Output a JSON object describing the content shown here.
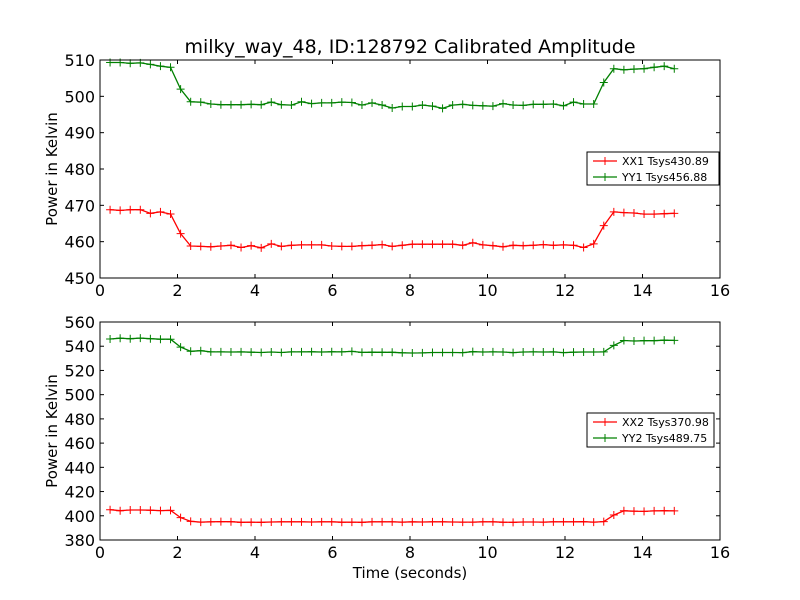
{
  "chart_data": [
    {
      "type": "line",
      "title": "milky_way_48, ID:128792 Calibrated Amplitude",
      "xlabel": "",
      "ylabel": "Power in Kelvin",
      "xlim": [
        0,
        16
      ],
      "ylim": [
        450,
        510
      ],
      "xticks": [
        "0",
        "2",
        "4",
        "6",
        "8",
        "10",
        "12",
        "14",
        "16"
      ],
      "yticks": [
        "450",
        "460",
        "470",
        "480",
        "490",
        "500",
        "510"
      ],
      "grid": false,
      "legend_position": "center-right",
      "x": [
        0.26,
        0.52,
        0.78,
        1.04,
        1.3,
        1.56,
        1.82,
        2.08,
        2.34,
        2.6,
        2.86,
        3.12,
        3.38,
        3.64,
        3.9,
        4.16,
        4.42,
        4.68,
        4.94,
        5.2,
        5.46,
        5.72,
        5.98,
        6.24,
        6.5,
        6.76,
        7.02,
        7.28,
        7.54,
        7.8,
        8.06,
        8.32,
        8.58,
        8.84,
        9.1,
        9.36,
        9.62,
        9.88,
        10.14,
        10.4,
        10.66,
        10.92,
        11.18,
        11.44,
        11.7,
        11.96,
        12.22,
        12.48,
        12.74,
        13.0,
        13.26,
        13.52,
        13.78,
        14.04,
        14.3,
        14.56,
        14.82
      ],
      "series": [
        {
          "name": "XX1 Tsys430.89",
          "color": "#ff0000",
          "values": [
            468.8,
            468.6,
            468.8,
            468.8,
            467.8,
            468.2,
            467.6,
            462.2,
            458.8,
            458.7,
            458.6,
            458.8,
            459.0,
            458.4,
            458.9,
            458.3,
            459.4,
            458.7,
            459.0,
            459.1,
            459.1,
            459.1,
            458.8,
            458.7,
            458.7,
            458.9,
            459.0,
            459.2,
            458.7,
            459.0,
            459.3,
            459.3,
            459.3,
            459.3,
            459.3,
            459.0,
            459.7,
            459.1,
            458.9,
            458.6,
            459.0,
            458.9,
            459.0,
            459.2,
            459.0,
            459.1,
            459.0,
            458.4,
            459.4,
            464.4,
            468.2,
            468.0,
            467.9,
            467.6,
            467.6,
            467.7,
            467.8
          ]
        },
        {
          "name": "YY1 Tsys456.88",
          "color": "#008000",
          "values": [
            509.3,
            509.3,
            509.1,
            509.2,
            508.8,
            508.3,
            508.0,
            502.0,
            498.5,
            498.4,
            497.9,
            497.7,
            497.7,
            497.7,
            497.8,
            497.7,
            498.4,
            497.7,
            497.6,
            498.5,
            498.0,
            498.2,
            498.2,
            498.4,
            498.3,
            497.6,
            498.2,
            497.6,
            496.8,
            497.2,
            497.2,
            497.6,
            497.3,
            496.7,
            497.6,
            497.8,
            497.5,
            497.4,
            497.3,
            498.0,
            497.6,
            497.5,
            497.8,
            497.8,
            497.9,
            497.4,
            498.4,
            497.9,
            497.9,
            503.8,
            507.6,
            507.3,
            507.5,
            507.6,
            508.0,
            508.3,
            507.6
          ]
        }
      ]
    },
    {
      "type": "line",
      "title": "",
      "xlabel": "Time (seconds)",
      "ylabel": "Power in Kelvin",
      "xlim": [
        0,
        16
      ],
      "ylim": [
        380,
        560
      ],
      "xticks": [
        "0",
        "2",
        "4",
        "6",
        "8",
        "10",
        "12",
        "14",
        "16"
      ],
      "yticks": [
        "380",
        "400",
        "420",
        "440",
        "460",
        "480",
        "500",
        "520",
        "540",
        "560"
      ],
      "grid": false,
      "legend_position": "center-right",
      "x": [
        0.26,
        0.52,
        0.78,
        1.04,
        1.3,
        1.56,
        1.82,
        2.08,
        2.34,
        2.6,
        2.86,
        3.12,
        3.38,
        3.64,
        3.9,
        4.16,
        4.42,
        4.68,
        4.94,
        5.2,
        5.46,
        5.72,
        5.98,
        6.24,
        6.5,
        6.76,
        7.02,
        7.28,
        7.54,
        7.8,
        8.06,
        8.32,
        8.58,
        8.84,
        9.1,
        9.36,
        9.62,
        9.88,
        10.14,
        10.4,
        10.66,
        10.92,
        11.18,
        11.44,
        11.7,
        11.96,
        12.22,
        12.48,
        12.74,
        13.0,
        13.26,
        13.52,
        13.78,
        14.04,
        14.3,
        14.56,
        14.82
      ],
      "series": [
        {
          "name": "XX2 Tsys370.98",
          "color": "#ff0000",
          "values": [
            405.0,
            404.2,
            404.8,
            404.8,
            404.6,
            404.3,
            404.5,
            398.5,
            395.4,
            394.8,
            395.0,
            395.2,
            395.1,
            394.6,
            394.7,
            394.6,
            394.9,
            395.0,
            395.0,
            395.0,
            394.9,
            395.0,
            395.0,
            394.7,
            394.8,
            394.6,
            395.0,
            395.0,
            395.0,
            394.8,
            395.0,
            394.9,
            395.0,
            395.0,
            394.9,
            394.8,
            394.8,
            395.0,
            395.0,
            394.7,
            394.6,
            394.9,
            394.9,
            394.8,
            395.0,
            395.0,
            395.0,
            395.1,
            394.8,
            395.2,
            400.6,
            404.1,
            403.8,
            403.6,
            404.0,
            404.2,
            404.0
          ]
        },
        {
          "name": "YY2 Tsys489.75",
          "color": "#008000",
          "values": [
            546.0,
            546.6,
            546.2,
            546.7,
            546.2,
            545.8,
            545.8,
            539.3,
            535.8,
            536.3,
            535.3,
            535.3,
            535.2,
            535.3,
            535.1,
            534.8,
            535.2,
            534.8,
            535.3,
            535.3,
            535.4,
            535.2,
            535.4,
            535.3,
            535.7,
            534.9,
            535.1,
            535.0,
            535.0,
            534.6,
            534.4,
            534.5,
            534.8,
            534.8,
            534.8,
            534.7,
            535.5,
            535.2,
            535.3,
            535.2,
            534.7,
            535.2,
            535.3,
            535.2,
            535.3,
            534.7,
            535.1,
            535.2,
            535.2,
            535.3,
            540.7,
            544.7,
            544.3,
            544.6,
            544.6,
            545.0,
            544.8
          ]
        }
      ]
    }
  ]
}
